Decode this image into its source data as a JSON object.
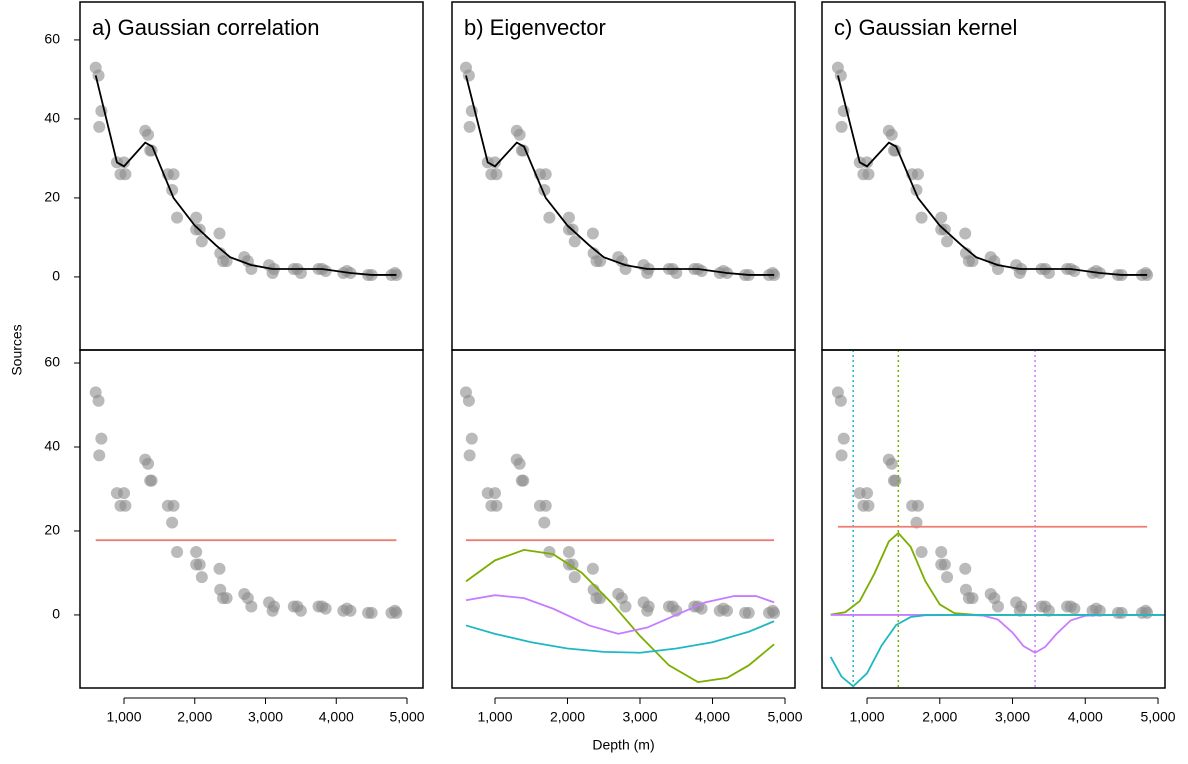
{
  "chart_data": [
    {
      "type": "scatter",
      "title": "a) Gaussian correlation",
      "ylabel": "Sources",
      "x": [
        600,
        640,
        680,
        650,
        900,
        950,
        1000,
        1020,
        1300,
        1340,
        1370,
        1390,
        1620,
        1680,
        1700,
        1750,
        2020,
        2020,
        2070,
        2100,
        2350,
        2360,
        2400,
        2450,
        2700,
        2750,
        2800,
        3050,
        3100,
        3120,
        3400,
        3450,
        3500,
        3750,
        3800,
        3850,
        4100,
        4150,
        4200,
        4450,
        4500,
        4780,
        4830,
        4850
      ],
      "y": [
        53,
        51,
        42,
        38,
        29,
        26,
        29,
        26,
        37,
        36,
        32,
        32,
        26,
        22,
        26,
        15,
        15,
        12,
        12,
        9,
        11,
        6,
        4,
        4,
        5,
        4,
        2,
        3,
        1,
        2,
        2,
        2,
        1,
        2,
        2,
        1.5,
        1,
        1.5,
        1,
        0.5,
        0.5,
        0.5,
        1,
        0.5
      ],
      "xlim": [
        378,
        5226
      ],
      "ylim": [
        -18.5,
        69.6
      ],
      "yticks": [
        0,
        20,
        40,
        60
      ],
      "series": [
        {
          "color": "#000000",
          "x": [
            600,
            900,
            1000,
            1300,
            1400,
            1700,
            2000,
            2300,
            2500,
            2800,
            3100,
            3500,
            3800,
            4200,
            4500,
            4850
          ],
          "values": [
            51,
            29,
            28,
            34,
            33,
            20,
            13,
            8,
            5,
            3,
            2,
            2,
            2,
            1,
            0.5,
            0.5
          ]
        }
      ]
    },
    {
      "type": "scatter",
      "title": "b) Eigenvector",
      "x": [
        600,
        640,
        680,
        650,
        900,
        950,
        1000,
        1020,
        1300,
        1340,
        1370,
        1390,
        1620,
        1680,
        1700,
        1750,
        2020,
        2020,
        2070,
        2100,
        2350,
        2360,
        2400,
        2450,
        2700,
        2750,
        2800,
        3050,
        3100,
        3120,
        3400,
        3450,
        3500,
        3750,
        3800,
        3850,
        4100,
        4150,
        4200,
        4450,
        4500,
        4780,
        4830,
        4850
      ],
      "y": [
        53,
        51,
        42,
        38,
        29,
        26,
        29,
        26,
        37,
        36,
        32,
        32,
        26,
        22,
        26,
        15,
        15,
        12,
        12,
        9,
        11,
        6,
        4,
        4,
        5,
        4,
        2,
        3,
        1,
        2,
        2,
        2,
        1,
        2,
        2,
        1.5,
        1,
        1.5,
        1,
        0.5,
        0.5,
        0.5,
        1,
        0.5
      ],
      "xlim": [
        407,
        5138
      ],
      "ylim": [
        -18.5,
        69.6
      ],
      "series": [
        {
          "color": "#000000",
          "x": [
            600,
            900,
            1000,
            1300,
            1400,
            1700,
            2000,
            2300,
            2500,
            2800,
            3100,
            3500,
            3800,
            4200,
            4500,
            4850
          ],
          "values": [
            51,
            29,
            28,
            34,
            33,
            20,
            13,
            8,
            5,
            3,
            2,
            2,
            2,
            1,
            0.5,
            0.5
          ]
        }
      ]
    },
    {
      "type": "scatter",
      "title": "c) Gaussian kernel",
      "x": [
        600,
        640,
        680,
        650,
        900,
        950,
        1000,
        1020,
        1300,
        1340,
        1370,
        1390,
        1620,
        1680,
        1700,
        1750,
        2020,
        2020,
        2070,
        2100,
        2350,
        2360,
        2400,
        2450,
        2700,
        2750,
        2800,
        3050,
        3100,
        3120,
        3400,
        3450,
        3500,
        3750,
        3800,
        3850,
        4100,
        4150,
        4200,
        4450,
        4500,
        4780,
        4830,
        4850
      ],
      "y": [
        53,
        51,
        42,
        38,
        29,
        26,
        29,
        26,
        37,
        36,
        32,
        32,
        26,
        22,
        26,
        15,
        15,
        12,
        12,
        9,
        11,
        6,
        4,
        4,
        5,
        4,
        2,
        3,
        1,
        2,
        2,
        2,
        1,
        2,
        2,
        1.5,
        1,
        1.5,
        1,
        0.5,
        0.5,
        0.5,
        1,
        0.5
      ],
      "xlim": [
        381,
        5096
      ],
      "ylim": [
        -18.5,
        69.6
      ],
      "series": [
        {
          "color": "#000000",
          "x": [
            600,
            900,
            1000,
            1300,
            1400,
            1700,
            2000,
            2300,
            2500,
            2800,
            3100,
            3500,
            3800,
            4200,
            4500,
            4850
          ],
          "values": [
            51,
            29,
            28,
            34,
            33,
            20,
            13,
            8,
            5,
            3,
            2,
            2,
            2,
            1,
            0.5,
            0.5
          ]
        }
      ]
    },
    {
      "type": "scatter",
      "x": [
        600,
        640,
        680,
        650,
        900,
        950,
        1000,
        1020,
        1300,
        1340,
        1370,
        1390,
        1620,
        1680,
        1700,
        1750,
        2020,
        2020,
        2070,
        2100,
        2350,
        2360,
        2400,
        2450,
        2700,
        2750,
        2800,
        3050,
        3100,
        3120,
        3400,
        3450,
        3500,
        3750,
        3800,
        3850,
        4100,
        4150,
        4200,
        4450,
        4500,
        4780,
        4830,
        4850
      ],
      "y": [
        53,
        51,
        42,
        38,
        29,
        26,
        29,
        26,
        37,
        36,
        32,
        32,
        26,
        22,
        26,
        15,
        15,
        12,
        12,
        9,
        11,
        6,
        4,
        4,
        5,
        4,
        2,
        3,
        1,
        2,
        2,
        2,
        1,
        2,
        2,
        1.5,
        1,
        1.5,
        1,
        0.5,
        0.5,
        0.5,
        1,
        0.5
      ],
      "xlim": [
        378,
        5226
      ],
      "ylim": [
        -17.4,
        63.1
      ],
      "yticks": [
        0,
        20,
        40,
        60
      ],
      "xticks": [
        {
          "value": 1000,
          "label": "1,000"
        },
        {
          "value": 2000,
          "label": "2,000"
        },
        {
          "value": 3000,
          "label": "3,000"
        },
        {
          "value": 4000,
          "label": "4,000"
        },
        {
          "value": 5000,
          "label": "5,000"
        }
      ],
      "series": [
        {
          "color": "#f07c72",
          "x": [
            600,
            4850
          ],
          "values": [
            17.8,
            17.8
          ]
        }
      ]
    },
    {
      "type": "scatter",
      "xlabel": "Depth (m)",
      "x": [
        600,
        640,
        680,
        650,
        900,
        950,
        1000,
        1020,
        1300,
        1340,
        1370,
        1390,
        1620,
        1680,
        1700,
        1750,
        2020,
        2020,
        2070,
        2100,
        2350,
        2360,
        2400,
        2450,
        2700,
        2750,
        2800,
        3050,
        3100,
        3120,
        3400,
        3450,
        3500,
        3750,
        3800,
        3850,
        4100,
        4150,
        4200,
        4450,
        4500,
        4780,
        4830,
        4850
      ],
      "y": [
        53,
        51,
        42,
        38,
        29,
        26,
        29,
        26,
        37,
        36,
        32,
        32,
        26,
        22,
        26,
        15,
        15,
        12,
        12,
        9,
        11,
        6,
        4,
        4,
        5,
        4,
        2,
        3,
        1,
        2,
        2,
        2,
        1,
        2,
        2,
        1.5,
        1,
        1.5,
        1,
        0.5,
        0.5,
        0.5,
        1,
        0.5
      ],
      "xlim": [
        407,
        5138
      ],
      "ylim": [
        -17.4,
        63.1
      ],
      "xticks": [
        {
          "value": 1000,
          "label": "1,000"
        },
        {
          "value": 2000,
          "label": "2,000"
        },
        {
          "value": 3000,
          "label": "3,000"
        },
        {
          "value": 4000,
          "label": "4,000"
        },
        {
          "value": 5000,
          "label": "5,000"
        }
      ],
      "series": [
        {
          "color": "#f07c72",
          "x": [
            600,
            4850
          ],
          "values": [
            17.8,
            17.8
          ]
        },
        {
          "color": "#7cae00",
          "x": [
            600,
            1000,
            1400,
            1800,
            2200,
            2600,
            3000,
            3400,
            3800,
            4200,
            4500,
            4850
          ],
          "values": [
            8,
            13,
            15.5,
            14.5,
            10,
            3,
            -5,
            -12,
            -16,
            -15,
            -12,
            -7
          ]
        },
        {
          "color": "#c77cff",
          "x": [
            600,
            1000,
            1400,
            1800,
            2300,
            2700,
            3100,
            3500,
            3900,
            4300,
            4600,
            4850
          ],
          "values": [
            3.5,
            4.7,
            4,
            1.5,
            -2.5,
            -4.5,
            -3,
            0,
            3,
            4.5,
            4.5,
            3
          ]
        },
        {
          "color": "#1fb8c2",
          "x": [
            600,
            1000,
            1500,
            2000,
            2500,
            3000,
            3500,
            4000,
            4500,
            4850
          ],
          "values": [
            -2.5,
            -4.5,
            -6.5,
            -8,
            -8.8,
            -9,
            -8,
            -6.5,
            -4,
            -1.5
          ]
        }
      ]
    },
    {
      "type": "scatter",
      "x": [
        600,
        640,
        680,
        650,
        900,
        950,
        1000,
        1020,
        1300,
        1340,
        1370,
        1390,
        1620,
        1680,
        1700,
        1750,
        2020,
        2020,
        2070,
        2100,
        2350,
        2360,
        2400,
        2450,
        2700,
        2750,
        2800,
        3050,
        3100,
        3120,
        3400,
        3450,
        3500,
        3750,
        3800,
        3850,
        4100,
        4150,
        4200,
        4450,
        4500,
        4780,
        4830,
        4850
      ],
      "y": [
        53,
        51,
        42,
        38,
        29,
        26,
        29,
        26,
        37,
        36,
        32,
        32,
        26,
        22,
        26,
        15,
        15,
        12,
        12,
        9,
        11,
        6,
        4,
        4,
        5,
        4,
        2,
        3,
        1,
        2,
        2,
        2,
        1,
        2,
        2,
        1.5,
        1,
        1.5,
        1,
        0.5,
        0.5,
        0.5,
        1,
        0.5
      ],
      "xlim": [
        381,
        5096
      ],
      "ylim": [
        -17.4,
        63.1
      ],
      "xticks": [
        {
          "value": 1000,
          "label": "1,000"
        },
        {
          "value": 2000,
          "label": "2,000"
        },
        {
          "value": 3000,
          "label": "3,000"
        },
        {
          "value": 4000,
          "label": "4,000"
        },
        {
          "value": 5000,
          "label": "5,000"
        }
      ],
      "series": [
        {
          "color": "#f07c72",
          "x": [
            600,
            4850
          ],
          "values": [
            21,
            21
          ]
        },
        {
          "color": "#7cae00",
          "x": [
            500,
            700,
            900,
            1100,
            1300,
            1430,
            1600,
            1800,
            2000,
            2200,
            2500,
            5090
          ],
          "values": [
            0.08,
            0.65,
            3.3,
            9.8,
            17.5,
            19.5,
            16.2,
            8.1,
            2.5,
            0.44,
            0,
            0
          ]
        },
        {
          "color": "#c77cff",
          "x": [
            500,
            2400,
            2600,
            2800,
            3000,
            3150,
            3310,
            3450,
            3600,
            3800,
            4000,
            4300,
            5090
          ],
          "values": [
            0,
            0,
            -0.16,
            -1.1,
            -4.2,
            -7.4,
            -9,
            -7.6,
            -4.6,
            -1.3,
            -0.2,
            0,
            0
          ]
        },
        {
          "color": "#1fb8c2",
          "x": [
            500,
            650,
            810,
            1000,
            1200,
            1400,
            1600,
            1800,
            2200,
            5090
          ],
          "values": [
            -10,
            -14.7,
            -17,
            -13.9,
            -7.3,
            -2.4,
            -0.5,
            -0.06,
            0,
            0
          ]
        }
      ],
      "vlines": [
        {
          "value": 810,
          "color": "#1fb8c2"
        },
        {
          "value": 1430,
          "color": "#7cae00"
        },
        {
          "value": 3310,
          "color": "#c77cff"
        }
      ]
    }
  ]
}
